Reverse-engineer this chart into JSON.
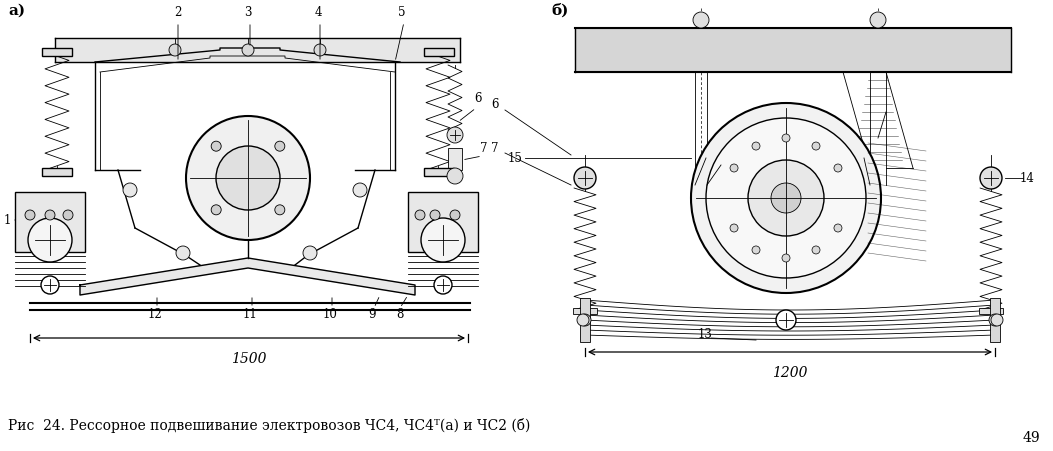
{
  "title": "",
  "caption": "Рис  24. Рессорное подвешивание электровозов ЧС4, ЧС4ᵀ(а) и ЧС2 (б)",
  "page_number": "49",
  "background_color": "#ffffff",
  "fig_width": 10.53,
  "fig_height": 4.51,
  "dpi": 100,
  "panel_a_label": "а)",
  "panel_b_label": "б)",
  "left_dim_label": "1500",
  "right_dim_label": "1200",
  "line_color": "#000000"
}
